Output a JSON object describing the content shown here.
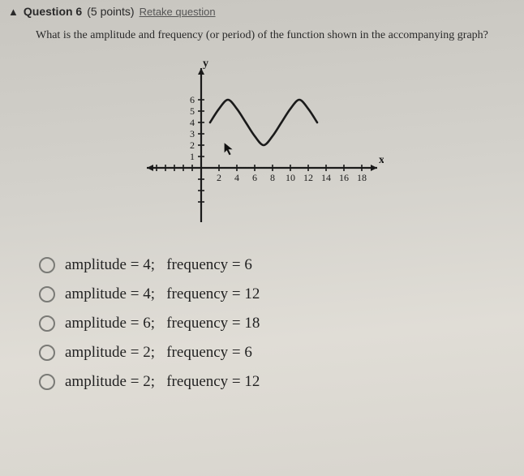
{
  "header": {
    "warn_icon": "▲",
    "question_label": "Question 6",
    "points": "(5 points)",
    "retake": "Retake question"
  },
  "prompt": "What is the amplitude and frequency (or period) of the function shown in the accompanying graph?",
  "graph": {
    "type": "line",
    "x_label": "x",
    "y_label": "y",
    "x_ticks": [
      "2",
      "4",
      "6",
      "8",
      "10",
      "12",
      "14",
      "16",
      "18"
    ],
    "y_ticks": [
      "1",
      "2",
      "3",
      "4",
      "5",
      "6"
    ],
    "xlim": [
      -5,
      20
    ],
    "ylim": [
      -4,
      7
    ],
    "axis_color": "#1a1a1a",
    "curve_color": "#1a1a1a",
    "tick_fontsize": 12,
    "label_fontsize": 14,
    "line_width": 2.2,
    "cursor_visible": true,
    "curve_points": [
      [
        1,
        4
      ],
      [
        2,
        5.2
      ],
      [
        3,
        6
      ],
      [
        4,
        5.2
      ],
      [
        5,
        4
      ],
      [
        6,
        2.8
      ],
      [
        7,
        2
      ],
      [
        8,
        2.8
      ],
      [
        9,
        4
      ],
      [
        10,
        5.2
      ],
      [
        11,
        6
      ],
      [
        12,
        5.2
      ],
      [
        13,
        4
      ]
    ]
  },
  "options": [
    {
      "label": "amplitude = 4;   frequency = 6"
    },
    {
      "label": "amplitude = 4;   frequency = 12"
    },
    {
      "label": "amplitude = 6;   frequency = 18"
    },
    {
      "label": "amplitude = 2;   frequency = 6"
    },
    {
      "label": "amplitude = 2;   frequency = 12"
    }
  ]
}
